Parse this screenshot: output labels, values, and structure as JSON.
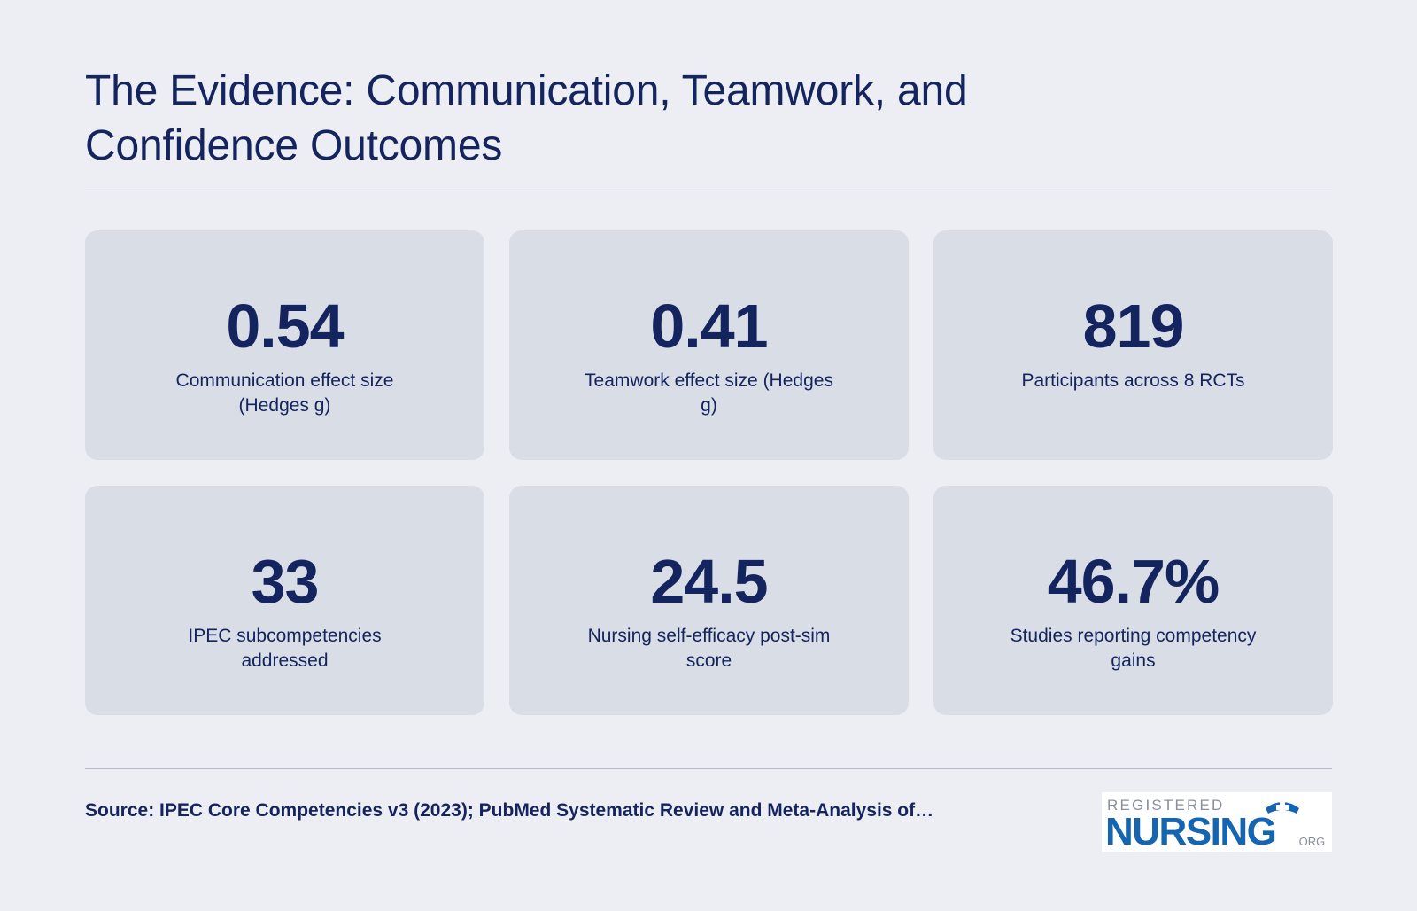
{
  "header": {
    "title": "The Evidence: Communication, Teamwork, and Confidence Outcomes"
  },
  "stats": [
    {
      "value": "0.54",
      "label": "Communication effect size (Hedges g)"
    },
    {
      "value": "0.41",
      "label": "Teamwork effect size (Hedges g)"
    },
    {
      "value": "819",
      "label": "Participants across 8 RCTs"
    },
    {
      "value": "33",
      "label": "IPEC subcompetencies addressed"
    },
    {
      "value": "24.5",
      "label": "Nursing self-efficacy post-sim score"
    },
    {
      "value": "46.7%",
      "label": "Studies reporting competency gains"
    }
  ],
  "footer": {
    "source": "Source: IPEC Core Competencies v3 (2023); PubMed Systematic Review and Meta-Analysis of…"
  },
  "logo": {
    "top_text": "REGISTERED",
    "main_text": "NURSING",
    "suffix": ".ORG",
    "icon": "nurse-cap-icon"
  },
  "colors": {
    "background": "#edeef3",
    "card": "#d9dde6",
    "text": "#14245e",
    "logo_blue": "#1565b0",
    "logo_gray": "#8a8f99"
  }
}
